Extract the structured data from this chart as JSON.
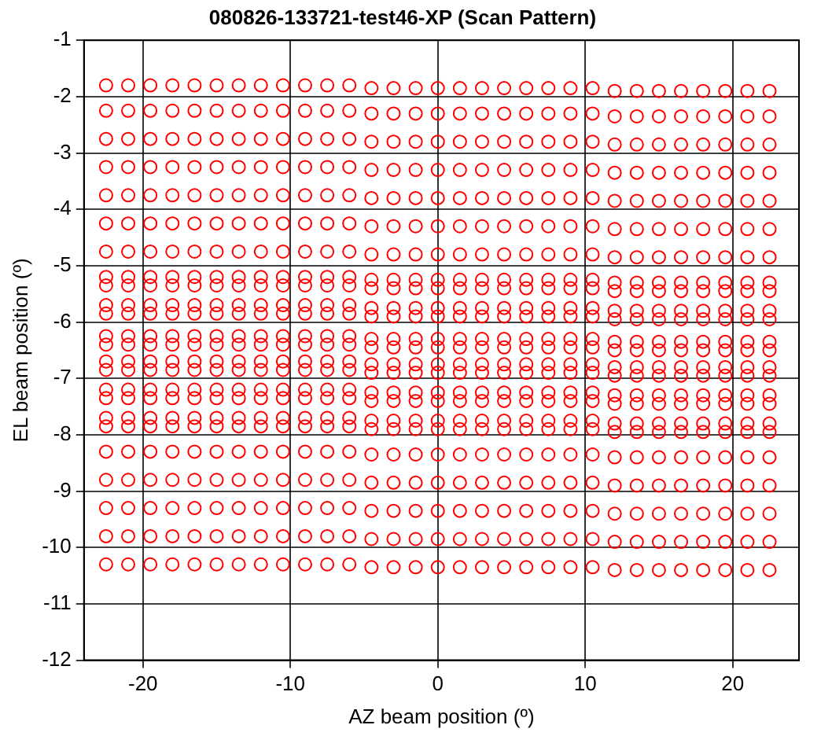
{
  "chart_data": {
    "type": "scatter",
    "title": "080826-133721-test46-XP (Scan Pattern)",
    "xlabel": "AZ beam position (º)",
    "ylabel": "EL beam position (º)",
    "x": [
      -22.5,
      -21,
      -19.5,
      -18,
      -16.5,
      -15,
      -13.5,
      -12,
      -10.5,
      -9,
      -7.5,
      -6,
      -4.5,
      -3,
      -1.5,
      0,
      1.5,
      3,
      4.5,
      6,
      7.5,
      9,
      10.5,
      12,
      13.5,
      15,
      16.5,
      18,
      19.5,
      21,
      22.5
    ],
    "series": [
      {
        "color": "#ff0000",
        "values": [
          -1.8,
          -1.8,
          -1.8,
          -1.8,
          -1.8,
          -1.8,
          -1.8,
          -1.8,
          -1.8,
          -1.8,
          -1.8,
          -1.8,
          -1.85,
          -1.85,
          -1.85,
          -1.85,
          -1.85,
          -1.85,
          -1.85,
          -1.85,
          -1.85,
          -1.85,
          -1.85,
          -1.9,
          -1.9,
          -1.9,
          -1.9,
          -1.9,
          -1.9,
          -1.9,
          -1.9
        ]
      },
      {
        "color": "#ff0000",
        "values": [
          -2.25,
          -2.25,
          -2.25,
          -2.25,
          -2.25,
          -2.25,
          -2.25,
          -2.25,
          -2.25,
          -2.25,
          -2.25,
          -2.25,
          -2.3,
          -2.3,
          -2.3,
          -2.3,
          -2.3,
          -2.3,
          -2.3,
          -2.3,
          -2.3,
          -2.3,
          -2.3,
          -2.35,
          -2.35,
          -2.35,
          -2.35,
          -2.35,
          -2.35,
          -2.35,
          -2.35
        ]
      },
      {
        "color": "#ff0000",
        "values": [
          -2.75,
          -2.75,
          -2.75,
          -2.75,
          -2.75,
          -2.75,
          -2.75,
          -2.75,
          -2.75,
          -2.75,
          -2.75,
          -2.75,
          -2.8,
          -2.8,
          -2.8,
          -2.8,
          -2.8,
          -2.8,
          -2.8,
          -2.8,
          -2.8,
          -2.8,
          -2.8,
          -2.85,
          -2.85,
          -2.85,
          -2.85,
          -2.85,
          -2.85,
          -2.85,
          -2.85
        ]
      },
      {
        "color": "#ff0000",
        "values": [
          -3.25,
          -3.25,
          -3.25,
          -3.25,
          -3.25,
          -3.25,
          -3.25,
          -3.25,
          -3.25,
          -3.25,
          -3.25,
          -3.25,
          -3.3,
          -3.3,
          -3.3,
          -3.3,
          -3.3,
          -3.3,
          -3.3,
          -3.3,
          -3.3,
          -3.3,
          -3.3,
          -3.35,
          -3.35,
          -3.35,
          -3.35,
          -3.35,
          -3.35,
          -3.35,
          -3.35
        ]
      },
      {
        "color": "#ff0000",
        "values": [
          -3.75,
          -3.75,
          -3.75,
          -3.75,
          -3.75,
          -3.75,
          -3.75,
          -3.75,
          -3.75,
          -3.75,
          -3.75,
          -3.75,
          -3.8,
          -3.8,
          -3.8,
          -3.8,
          -3.8,
          -3.8,
          -3.8,
          -3.8,
          -3.8,
          -3.8,
          -3.8,
          -3.85,
          -3.85,
          -3.85,
          -3.85,
          -3.85,
          -3.85,
          -3.85,
          -3.85
        ]
      },
      {
        "color": "#ff0000",
        "values": [
          -4.25,
          -4.25,
          -4.25,
          -4.25,
          -4.25,
          -4.25,
          -4.25,
          -4.25,
          -4.25,
          -4.25,
          -4.25,
          -4.25,
          -4.3,
          -4.3,
          -4.3,
          -4.3,
          -4.3,
          -4.3,
          -4.3,
          -4.3,
          -4.3,
          -4.3,
          -4.3,
          -4.35,
          -4.35,
          -4.35,
          -4.35,
          -4.35,
          -4.35,
          -4.35,
          -4.35
        ]
      },
      {
        "color": "#ff0000",
        "values": [
          -4.75,
          -4.75,
          -4.75,
          -4.75,
          -4.75,
          -4.75,
          -4.75,
          -4.75,
          -4.75,
          -4.75,
          -4.75,
          -4.75,
          -4.8,
          -4.8,
          -4.8,
          -4.8,
          -4.8,
          -4.8,
          -4.8,
          -4.8,
          -4.8,
          -4.8,
          -4.8,
          -4.85,
          -4.85,
          -4.85,
          -4.85,
          -4.85,
          -4.85,
          -4.85,
          -4.85
        ]
      },
      {
        "color": "#ff0000",
        "values": [
          -5.2,
          -5.2,
          -5.2,
          -5.2,
          -5.2,
          -5.2,
          -5.2,
          -5.2,
          -5.2,
          -5.2,
          -5.2,
          -5.2,
          -5.25,
          -5.25,
          -5.25,
          -5.25,
          -5.25,
          -5.25,
          -5.25,
          -5.25,
          -5.25,
          -5.25,
          -5.25,
          -5.3,
          -5.3,
          -5.3,
          -5.3,
          -5.3,
          -5.3,
          -5.3,
          -5.3
        ]
      },
      {
        "color": "#ff0000",
        "values": [
          -5.35,
          -5.35,
          -5.35,
          -5.35,
          -5.35,
          -5.35,
          -5.35,
          -5.35,
          -5.35,
          -5.35,
          -5.35,
          -5.35,
          -5.4,
          -5.4,
          -5.4,
          -5.4,
          -5.4,
          -5.4,
          -5.4,
          -5.4,
          -5.4,
          -5.4,
          -5.4,
          -5.45,
          -5.45,
          -5.45,
          -5.45,
          -5.45,
          -5.45,
          -5.45,
          -5.45
        ]
      },
      {
        "color": "#ff0000",
        "values": [
          -5.7,
          -5.7,
          -5.7,
          -5.7,
          -5.7,
          -5.7,
          -5.7,
          -5.7,
          -5.7,
          -5.7,
          -5.7,
          -5.7,
          -5.75,
          -5.75,
          -5.75,
          -5.75,
          -5.75,
          -5.75,
          -5.75,
          -5.75,
          -5.75,
          -5.75,
          -5.75,
          -5.8,
          -5.8,
          -5.8,
          -5.8,
          -5.8,
          -5.8,
          -5.8,
          -5.8
        ]
      },
      {
        "color": "#ff0000",
        "values": [
          -5.85,
          -5.85,
          -5.85,
          -5.85,
          -5.85,
          -5.85,
          -5.85,
          -5.85,
          -5.85,
          -5.85,
          -5.85,
          -5.85,
          -5.9,
          -5.9,
          -5.9,
          -5.9,
          -5.9,
          -5.9,
          -5.9,
          -5.9,
          -5.9,
          -5.9,
          -5.9,
          -5.95,
          -5.95,
          -5.95,
          -5.95,
          -5.95,
          -5.95,
          -5.95,
          -5.95
        ]
      },
      {
        "color": "#ff0000",
        "values": [
          -6.25,
          -6.25,
          -6.25,
          -6.25,
          -6.25,
          -6.25,
          -6.25,
          -6.25,
          -6.25,
          -6.25,
          -6.25,
          -6.25,
          -6.3,
          -6.3,
          -6.3,
          -6.3,
          -6.3,
          -6.3,
          -6.3,
          -6.3,
          -6.3,
          -6.3,
          -6.3,
          -6.35,
          -6.35,
          -6.35,
          -6.35,
          -6.35,
          -6.35,
          -6.35,
          -6.35
        ]
      },
      {
        "color": "#ff0000",
        "values": [
          -6.4,
          -6.4,
          -6.4,
          -6.4,
          -6.4,
          -6.4,
          -6.4,
          -6.4,
          -6.4,
          -6.4,
          -6.4,
          -6.4,
          -6.45,
          -6.45,
          -6.45,
          -6.45,
          -6.45,
          -6.45,
          -6.45,
          -6.45,
          -6.45,
          -6.45,
          -6.45,
          -6.5,
          -6.5,
          -6.5,
          -6.5,
          -6.5,
          -6.5,
          -6.5,
          -6.5
        ]
      },
      {
        "color": "#ff0000",
        "values": [
          -6.7,
          -6.7,
          -6.7,
          -6.7,
          -6.7,
          -6.7,
          -6.7,
          -6.7,
          -6.7,
          -6.7,
          -6.7,
          -6.7,
          -6.75,
          -6.75,
          -6.75,
          -6.75,
          -6.75,
          -6.75,
          -6.75,
          -6.75,
          -6.75,
          -6.75,
          -6.75,
          -6.8,
          -6.8,
          -6.8,
          -6.8,
          -6.8,
          -6.8,
          -6.8,
          -6.8
        ]
      },
      {
        "color": "#ff0000",
        "values": [
          -6.85,
          -6.85,
          -6.85,
          -6.85,
          -6.85,
          -6.85,
          -6.85,
          -6.85,
          -6.85,
          -6.85,
          -6.85,
          -6.85,
          -6.9,
          -6.9,
          -6.9,
          -6.9,
          -6.9,
          -6.9,
          -6.9,
          -6.9,
          -6.9,
          -6.9,
          -6.9,
          -6.95,
          -6.95,
          -6.95,
          -6.95,
          -6.95,
          -6.95,
          -6.95,
          -6.95
        ]
      },
      {
        "color": "#ff0000",
        "values": [
          -7.2,
          -7.2,
          -7.2,
          -7.2,
          -7.2,
          -7.2,
          -7.2,
          -7.2,
          -7.2,
          -7.2,
          -7.2,
          -7.2,
          -7.25,
          -7.25,
          -7.25,
          -7.25,
          -7.25,
          -7.25,
          -7.25,
          -7.25,
          -7.25,
          -7.25,
          -7.25,
          -7.3,
          -7.3,
          -7.3,
          -7.3,
          -7.3,
          -7.3,
          -7.3,
          -7.3
        ]
      },
      {
        "color": "#ff0000",
        "values": [
          -7.35,
          -7.35,
          -7.35,
          -7.35,
          -7.35,
          -7.35,
          -7.35,
          -7.35,
          -7.35,
          -7.35,
          -7.35,
          -7.35,
          -7.4,
          -7.4,
          -7.4,
          -7.4,
          -7.4,
          -7.4,
          -7.4,
          -7.4,
          -7.4,
          -7.4,
          -7.4,
          -7.45,
          -7.45,
          -7.45,
          -7.45,
          -7.45,
          -7.45,
          -7.45,
          -7.45
        ]
      },
      {
        "color": "#ff0000",
        "values": [
          -7.7,
          -7.7,
          -7.7,
          -7.7,
          -7.7,
          -7.7,
          -7.7,
          -7.7,
          -7.7,
          -7.7,
          -7.7,
          -7.7,
          -7.75,
          -7.75,
          -7.75,
          -7.75,
          -7.75,
          -7.75,
          -7.75,
          -7.75,
          -7.75,
          -7.75,
          -7.75,
          -7.8,
          -7.8,
          -7.8,
          -7.8,
          -7.8,
          -7.8,
          -7.8,
          -7.8
        ]
      },
      {
        "color": "#ff0000",
        "values": [
          -7.85,
          -7.85,
          -7.85,
          -7.85,
          -7.85,
          -7.85,
          -7.85,
          -7.85,
          -7.85,
          -7.85,
          -7.85,
          -7.85,
          -7.9,
          -7.9,
          -7.9,
          -7.9,
          -7.9,
          -7.9,
          -7.9,
          -7.9,
          -7.9,
          -7.9,
          -7.9,
          -7.95,
          -7.95,
          -7.95,
          -7.95,
          -7.95,
          -7.95,
          -7.95,
          -7.95
        ]
      },
      {
        "color": "#ff0000",
        "values": [
          -8.3,
          -8.3,
          -8.3,
          -8.3,
          -8.3,
          -8.3,
          -8.3,
          -8.3,
          -8.3,
          -8.3,
          -8.3,
          -8.3,
          -8.35,
          -8.35,
          -8.35,
          -8.35,
          -8.35,
          -8.35,
          -8.35,
          -8.35,
          -8.35,
          -8.35,
          -8.35,
          -8.4,
          -8.4,
          -8.4,
          -8.4,
          -8.4,
          -8.4,
          -8.4,
          -8.4
        ]
      },
      {
        "color": "#ff0000",
        "values": [
          -8.8,
          -8.8,
          -8.8,
          -8.8,
          -8.8,
          -8.8,
          -8.8,
          -8.8,
          -8.8,
          -8.8,
          -8.8,
          -8.8,
          -8.85,
          -8.85,
          -8.85,
          -8.85,
          -8.85,
          -8.85,
          -8.85,
          -8.85,
          -8.85,
          -8.85,
          -8.85,
          -8.9,
          -8.9,
          -8.9,
          -8.9,
          -8.9,
          -8.9,
          -8.9,
          -8.9
        ]
      },
      {
        "color": "#ff0000",
        "values": [
          -9.3,
          -9.3,
          -9.3,
          -9.3,
          -9.3,
          -9.3,
          -9.3,
          -9.3,
          -9.3,
          -9.3,
          -9.3,
          -9.3,
          -9.35,
          -9.35,
          -9.35,
          -9.35,
          -9.35,
          -9.35,
          -9.35,
          -9.35,
          -9.35,
          -9.35,
          -9.35,
          -9.4,
          -9.4,
          -9.4,
          -9.4,
          -9.4,
          -9.4,
          -9.4,
          -9.4
        ]
      },
      {
        "color": "#ff0000",
        "values": [
          -9.8,
          -9.8,
          -9.8,
          -9.8,
          -9.8,
          -9.8,
          -9.8,
          -9.8,
          -9.8,
          -9.8,
          -9.8,
          -9.8,
          -9.85,
          -9.85,
          -9.85,
          -9.85,
          -9.85,
          -9.85,
          -9.85,
          -9.85,
          -9.85,
          -9.85,
          -9.85,
          -9.9,
          -9.9,
          -9.9,
          -9.9,
          -9.9,
          -9.9,
          -9.9,
          -9.9
        ]
      },
      {
        "color": "#ff0000",
        "values": [
          -10.3,
          -10.3,
          -10.3,
          -10.3,
          -10.3,
          -10.3,
          -10.3,
          -10.3,
          -10.3,
          -10.3,
          -10.3,
          -10.3,
          -10.35,
          -10.35,
          -10.35,
          -10.35,
          -10.35,
          -10.35,
          -10.35,
          -10.35,
          -10.35,
          -10.35,
          -10.35,
          -10.4,
          -10.4,
          -10.4,
          -10.4,
          -10.4,
          -10.4,
          -10.4,
          -10.4
        ]
      }
    ],
    "xlim": [
      -24,
      24.5
    ],
    "xticks": [
      -20,
      -10,
      0,
      10,
      20
    ],
    "ylim": [
      -12,
      -1
    ],
    "yticks": [
      -12,
      -11,
      -10,
      -9,
      -8,
      -7,
      -6,
      -5,
      -4,
      -3,
      -2,
      -1
    ],
    "grid": true,
    "legend": false,
    "marker": "circle"
  }
}
